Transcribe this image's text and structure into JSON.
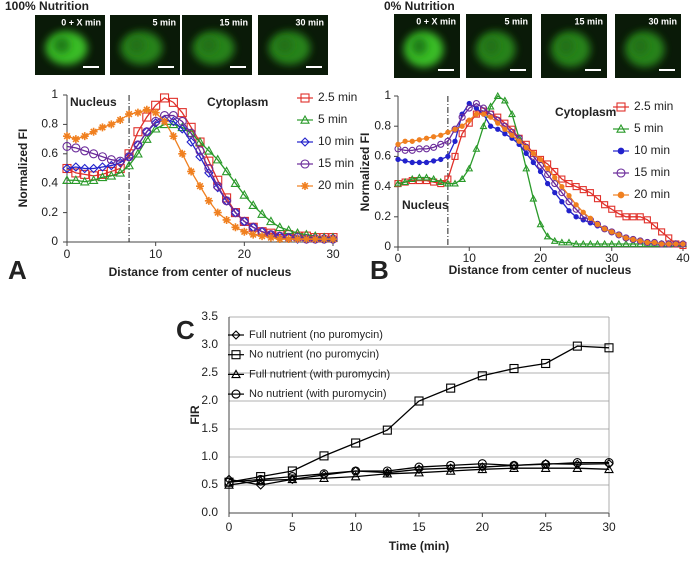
{
  "chart_data": [
    {
      "type": "line",
      "panel_label": "A",
      "title": "100% Nutrition",
      "image_labels": [
        "0 + X min",
        "5 min",
        "15 min",
        "30 min"
      ],
      "y_label": "Normalized FI",
      "x_label": "Distance from center of nucleus",
      "annotations": [
        "Nucleus",
        "Cytoplasm"
      ],
      "divider_x": 7,
      "xlim": [
        0,
        30
      ],
      "xticks": [
        0,
        10,
        20,
        30
      ],
      "ylim": [
        0,
        1
      ],
      "yticks": [
        0,
        0.2,
        0.4,
        0.6,
        0.8,
        1
      ],
      "grid": false,
      "legend": "right",
      "x": [
        0,
        1,
        2,
        3,
        4,
        5,
        6,
        7,
        8,
        9,
        10,
        11,
        12,
        13,
        14,
        15,
        16,
        17,
        18,
        19,
        20,
        21,
        22,
        23,
        24,
        25,
        26,
        27,
        28,
        29,
        30
      ],
      "series": [
        {
          "name": "2.5 min",
          "color": "#e0302a",
          "marker": "square",
          "values": [
            0.5,
            0.47,
            0.46,
            0.45,
            0.46,
            0.48,
            0.5,
            0.6,
            0.75,
            0.85,
            0.93,
            0.98,
            0.95,
            0.88,
            0.78,
            0.68,
            0.55,
            0.42,
            0.3,
            0.2,
            0.14,
            0.1,
            0.07,
            0.06,
            0.05,
            0.05,
            0.04,
            0.04,
            0.03,
            0.03,
            0.03
          ]
        },
        {
          "name": "5 min",
          "color": "#2a9a2a",
          "marker": "triangle",
          "values": [
            0.42,
            0.42,
            0.41,
            0.42,
            0.44,
            0.45,
            0.47,
            0.52,
            0.6,
            0.7,
            0.77,
            0.8,
            0.8,
            0.78,
            0.74,
            0.68,
            0.62,
            0.56,
            0.48,
            0.4,
            0.32,
            0.25,
            0.19,
            0.14,
            0.1,
            0.08,
            0.06,
            0.05,
            0.04,
            0.03,
            0.03
          ]
        },
        {
          "name": "10 min",
          "color": "#2222cc",
          "marker": "diamond",
          "values": [
            0.5,
            0.51,
            0.5,
            0.5,
            0.51,
            0.52,
            0.54,
            0.58,
            0.66,
            0.75,
            0.81,
            0.83,
            0.82,
            0.77,
            0.68,
            0.58,
            0.47,
            0.37,
            0.28,
            0.2,
            0.14,
            0.1,
            0.07,
            0.05,
            0.04,
            0.03,
            0.02,
            0.02,
            0.02,
            0.02,
            0.02
          ]
        },
        {
          "name": "15 min",
          "color": "#6a2a9a",
          "marker": "circle",
          "values": [
            0.65,
            0.64,
            0.62,
            0.6,
            0.58,
            0.56,
            0.55,
            0.58,
            0.66,
            0.75,
            0.82,
            0.86,
            0.86,
            0.82,
            0.74,
            0.62,
            0.5,
            0.38,
            0.28,
            0.2,
            0.14,
            0.1,
            0.07,
            0.05,
            0.04,
            0.03,
            0.03,
            0.02,
            0.02,
            0.02,
            0.02
          ]
        },
        {
          "name": "20 min",
          "color": "#f08020",
          "marker": "star",
          "values": [
            0.72,
            0.7,
            0.72,
            0.75,
            0.78,
            0.8,
            0.83,
            0.87,
            0.88,
            0.9,
            0.88,
            0.82,
            0.72,
            0.6,
            0.48,
            0.38,
            0.28,
            0.2,
            0.15,
            0.1,
            0.07,
            0.05,
            0.04,
            0.03,
            0.02,
            0.02,
            0.02,
            0.02,
            0.02,
            0.02,
            0.02
          ]
        }
      ]
    },
    {
      "type": "line",
      "panel_label": "B",
      "title": "0% Nutrition",
      "image_labels": [
        "0 + X min",
        "5 min",
        "15 min",
        "30 min"
      ],
      "y_label": "Normalized FI",
      "x_label": "Distance from center of nucleus",
      "annotations": [
        "Cytoplasm",
        "Nucleus"
      ],
      "divider_x": 7,
      "xlim": [
        0,
        40
      ],
      "xticks": [
        0,
        10,
        20,
        30,
        40
      ],
      "ylim": [
        0,
        1
      ],
      "yticks": [
        0,
        0.2,
        0.4,
        0.6,
        0.8,
        1
      ],
      "grid": false,
      "legend": "right",
      "x": [
        0,
        1,
        2,
        3,
        4,
        5,
        6,
        7,
        8,
        9,
        10,
        11,
        12,
        13,
        14,
        15,
        16,
        17,
        18,
        19,
        20,
        21,
        22,
        23,
        24,
        25,
        26,
        27,
        28,
        29,
        30,
        31,
        32,
        33,
        34,
        35,
        36,
        37,
        38,
        39,
        40
      ],
      "series": [
        {
          "name": "2.5 min",
          "color": "#e0302a",
          "marker": "square",
          "values": [
            0.42,
            0.43,
            0.44,
            0.44,
            0.44,
            0.43,
            0.42,
            0.45,
            0.6,
            0.75,
            0.82,
            0.88,
            0.9,
            0.88,
            0.86,
            0.82,
            0.78,
            0.72,
            0.68,
            0.62,
            0.58,
            0.55,
            0.5,
            0.45,
            0.42,
            0.4,
            0.38,
            0.36,
            0.32,
            0.28,
            0.25,
            0.22,
            0.2,
            0.2,
            0.2,
            0.18,
            0.14,
            0.1,
            0.06,
            0.02,
            0.01
          ]
        },
        {
          "name": "5 min",
          "color": "#2a9a2a",
          "marker": "triangle",
          "values": [
            0.42,
            0.43,
            0.45,
            0.46,
            0.46,
            0.45,
            0.43,
            0.42,
            0.42,
            0.45,
            0.52,
            0.65,
            0.8,
            0.93,
            1.0,
            0.97,
            0.88,
            0.72,
            0.52,
            0.32,
            0.15,
            0.07,
            0.04,
            0.03,
            0.03,
            0.02,
            0.02,
            0.02,
            0.02,
            0.02,
            0.02,
            0.02,
            0.02,
            0.02,
            0.02,
            0.02,
            0.02,
            0.02,
            0.02,
            0.02,
            0.02
          ]
        },
        {
          "name": "10 min",
          "color": "#2222cc",
          "marker": "line",
          "values": [
            0.58,
            0.57,
            0.56,
            0.56,
            0.56,
            0.57,
            0.58,
            0.6,
            0.7,
            0.88,
            0.95,
            0.92,
            0.88,
            0.8,
            0.78,
            0.75,
            0.72,
            0.68,
            0.62,
            0.56,
            0.5,
            0.42,
            0.36,
            0.3,
            0.24,
            0.2,
            0.18,
            0.16,
            0.14,
            0.12,
            0.1,
            0.08,
            0.06,
            0.05,
            0.04,
            0.03,
            0.03,
            0.02,
            0.02,
            0.02,
            0.02
          ]
        },
        {
          "name": "15 min",
          "color": "#6a2a9a",
          "marker": "circle",
          "values": [
            0.65,
            0.64,
            0.64,
            0.65,
            0.65,
            0.66,
            0.68,
            0.7,
            0.78,
            0.86,
            0.92,
            0.95,
            0.92,
            0.88,
            0.84,
            0.8,
            0.76,
            0.72,
            0.66,
            0.6,
            0.54,
            0.48,
            0.42,
            0.36,
            0.3,
            0.25,
            0.2,
            0.18,
            0.15,
            0.12,
            0.1,
            0.08,
            0.06,
            0.05,
            0.04,
            0.03,
            0.03,
            0.02,
            0.02,
            0.02,
            0.02
          ]
        },
        {
          "name": "20 min",
          "color": "#f08020",
          "marker": "line",
          "values": [
            0.68,
            0.7,
            0.7,
            0.71,
            0.72,
            0.73,
            0.74,
            0.76,
            0.78,
            0.8,
            0.84,
            0.88,
            0.88,
            0.86,
            0.82,
            0.78,
            0.74,
            0.7,
            0.66,
            0.62,
            0.58,
            0.52,
            0.46,
            0.4,
            0.34,
            0.28,
            0.23,
            0.19,
            0.15,
            0.12,
            0.1,
            0.08,
            0.06,
            0.05,
            0.04,
            0.03,
            0.03,
            0.02,
            0.02,
            0.02,
            0.02
          ]
        }
      ]
    },
    {
      "type": "line",
      "panel_label": "C",
      "y_label": "FIR",
      "x_label": "Time (min)",
      "xlim": [
        0,
        30
      ],
      "xticks": [
        0,
        5,
        10,
        15,
        20,
        25,
        30
      ],
      "ylim": [
        0,
        3.5
      ],
      "yticks": [
        {
          "value": 0,
          "label": "0.0"
        },
        0.5,
        {
          "value": 1,
          "label": "1.0"
        },
        1.5,
        {
          "value": 2,
          "label": "2.0"
        },
        2.5,
        {
          "value": 3,
          "label": "3.0"
        },
        3.5
      ],
      "grid": true,
      "legend": "upper left",
      "x": [
        0,
        2.5,
        5,
        7.5,
        10,
        12.5,
        15,
        17.5,
        20,
        22.5,
        25,
        27.5,
        30
      ],
      "series": [
        {
          "name": "Full nutrient (no puromycin)",
          "color": "#000000",
          "marker": "diamond",
          "values": [
            0.6,
            0.5,
            0.6,
            0.68,
            0.75,
            0.72,
            0.78,
            0.8,
            0.82,
            0.85,
            0.88,
            0.87,
            0.88
          ]
        },
        {
          "name": "No nutrient (no puromycin)",
          "color": "#000000",
          "marker": "square",
          "values": [
            0.55,
            0.65,
            0.75,
            1.02,
            1.25,
            1.48,
            2.0,
            2.23,
            2.45,
            2.58,
            2.67,
            2.98,
            2.95
          ]
        },
        {
          "name": "Full nutrient (with puromycin)",
          "color": "#000000",
          "marker": "triangle",
          "values": [
            0.5,
            0.58,
            0.6,
            0.62,
            0.65,
            0.7,
            0.72,
            0.75,
            0.78,
            0.8,
            0.8,
            0.8,
            0.78
          ]
        },
        {
          "name": "No nutrient (with puromycin)",
          "color": "#000000",
          "marker": "circle",
          "values": [
            0.55,
            0.6,
            0.65,
            0.7,
            0.75,
            0.75,
            0.82,
            0.85,
            0.88,
            0.85,
            0.87,
            0.9,
            0.9
          ]
        }
      ]
    }
  ]
}
